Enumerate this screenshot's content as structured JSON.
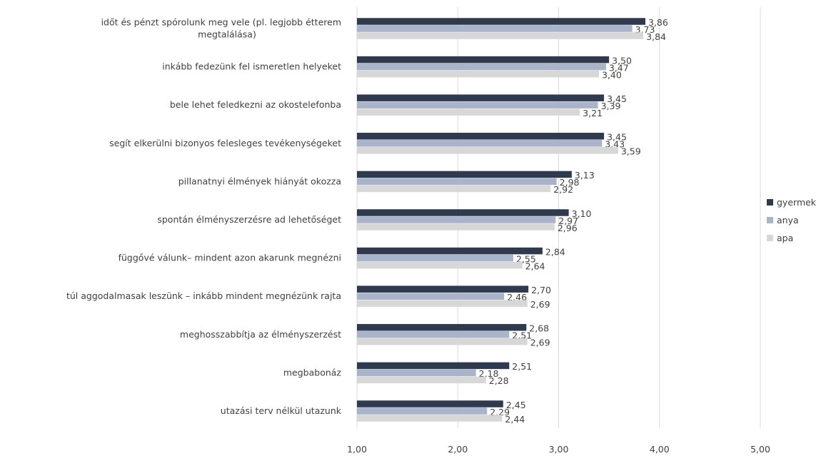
{
  "chart_data": {
    "type": "bar",
    "orientation": "horizontal",
    "categories": [
      "időt és pénzt spórolunk meg vele (pl. legjobb étterem megtalálása)",
      "inkább fedezünk fel ismeretlen helyeket",
      "bele lehet feledkezni az okostelefonba",
      "segít elkerülni bizonyos felesleges tevékenységeket",
      "pillanatnyi élmények hiányát okozza",
      "spontán élményszerzésre ad lehetőséget",
      "függővé válunk– mindent azon akarunk megnézni",
      "túl aggodalmasak leszünk – inkább mindent megnézünk rajta",
      "meghosszabbítja az élményszerzést",
      "megbabonáz",
      "utazási terv nélkül utazunk"
    ],
    "category_lines": [
      [
        "időt és pénzt spórolunk meg vele (pl. legjobb étterem",
        "megtalálása)"
      ],
      [
        "inkább fedezünk fel ismeretlen helyeket"
      ],
      [
        "bele lehet feledkezni az okostelefonba"
      ],
      [
        "segít elkerülni bizonyos felesleges tevékenységeket"
      ],
      [
        "pillanatnyi élmények hiányát okozza"
      ],
      [
        "spontán élményszerzésre ad lehetőséget"
      ],
      [
        "függővé válunk– mindent azon akarunk megnézni"
      ],
      [
        "túl aggodalmasak leszünk – inkább mindent megnézünk rajta"
      ],
      [
        "meghosszabbítja az élményszerzést"
      ],
      [
        "megbabonáz"
      ],
      [
        "utazási terv nélkül utazunk"
      ]
    ],
    "series": [
      {
        "name": "gyermek",
        "color": "#2f3a4f",
        "values": [
          3.86,
          3.5,
          3.45,
          3.45,
          3.13,
          3.1,
          2.84,
          2.7,
          2.68,
          2.51,
          2.45
        ]
      },
      {
        "name": "anya",
        "color": "#a9b3c9",
        "values": [
          3.73,
          3.47,
          3.39,
          3.43,
          2.98,
          2.97,
          2.55,
          2.46,
          2.51,
          2.18,
          2.29
        ]
      },
      {
        "name": "apa",
        "color": "#d7d7d7",
        "values": [
          3.84,
          3.4,
          3.21,
          3.59,
          2.92,
          2.96,
          2.64,
          2.69,
          2.69,
          2.28,
          2.44
        ]
      }
    ],
    "value_labels": [
      [
        "3,86",
        "3,73",
        "3,84"
      ],
      [
        "3,50",
        "3,47",
        "3,40"
      ],
      [
        "3,45",
        "3,39",
        "3,21"
      ],
      [
        "3,45",
        "3,43",
        "3,59"
      ],
      [
        "3,13",
        "2,98",
        "2,92"
      ],
      [
        "3,10",
        "2,97",
        "2,96"
      ],
      [
        "2,84",
        "2,55",
        "2,64"
      ],
      [
        "2,70",
        "2,46",
        "2,69"
      ],
      [
        "2,68",
        "2,51",
        "2,69"
      ],
      [
        "2,51",
        "2,18",
        "2,28"
      ],
      [
        "2,45",
        "2,29",
        "2,44"
      ]
    ],
    "xlim": [
      1,
      5
    ],
    "xticks": [
      1,
      2,
      3,
      4,
      5
    ],
    "xtick_labels": [
      "1,00",
      "2,00",
      "3,00",
      "4,00",
      "5,00"
    ],
    "grid": "vertical",
    "legend": "right",
    "title": "",
    "xlabel": "",
    "ylabel": ""
  }
}
